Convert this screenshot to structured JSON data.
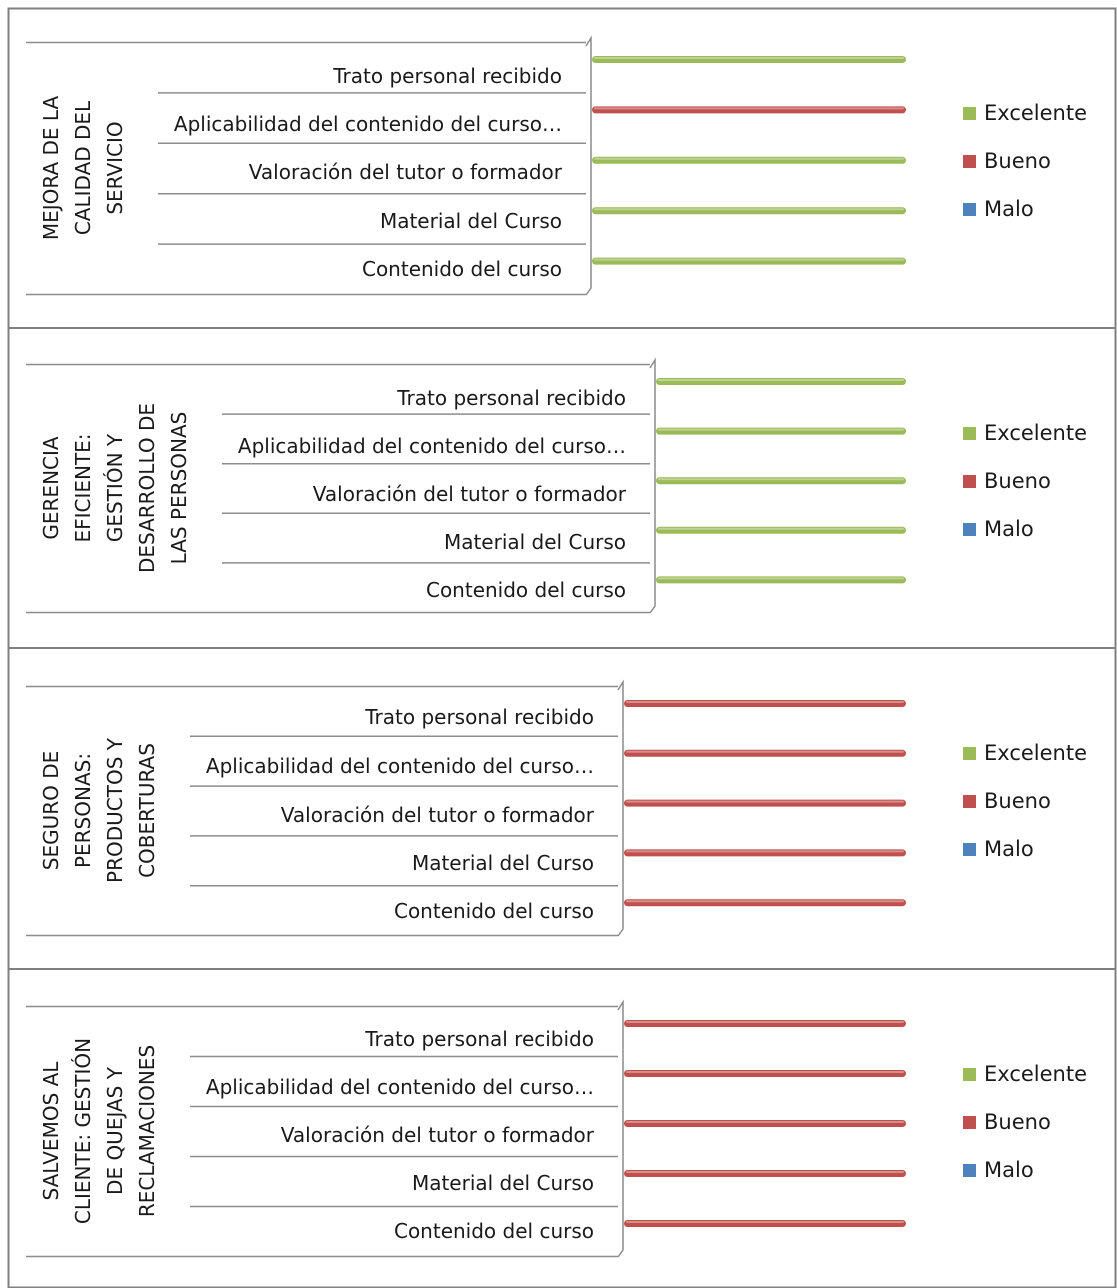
{
  "legend_labels": [
    "Excelente",
    "Bueno",
    "Malo"
  ],
  "colors": {
    "Excelente": "#9bbb59",
    "Bueno": "#c0504d",
    "Malo": "#4f81bd",
    "grid": "#8c8c8c",
    "border": "#7f7f7f"
  },
  "chart_data": [
    {
      "type": "bar",
      "orientation": "horizontal",
      "group_label": [
        "MEJORA DE LA",
        "CALIDAD DEL",
        "SERVICIO"
      ],
      "categories": [
        "Trato personal recibido",
        "Aplicabilidad del contenido del curso…",
        "Valoración del tutor o formador",
        "Material del Curso",
        "Contenido del curso"
      ],
      "series": [
        {
          "name": "Excelente",
          "values": [
            1,
            0,
            1,
            1,
            1
          ]
        },
        {
          "name": "Bueno",
          "values": [
            0,
            1,
            0,
            0,
            0
          ]
        },
        {
          "name": "Malo",
          "values": [
            0,
            0,
            0,
            0,
            0
          ]
        }
      ],
      "legend": "right",
      "grid": true
    },
    {
      "type": "bar",
      "orientation": "horizontal",
      "group_label": [
        "GERENCIA",
        "EFICIENTE:",
        "GESTIÓN Y",
        "DESARROLLO DE",
        "LAS PERSONAS"
      ],
      "categories": [
        "Trato personal recibido",
        "Aplicabilidad del contenido del curso…",
        "Valoración del tutor o formador",
        "Material del Curso",
        "Contenido del curso"
      ],
      "series": [
        {
          "name": "Excelente",
          "values": [
            1,
            1,
            1,
            1,
            1
          ]
        },
        {
          "name": "Bueno",
          "values": [
            0,
            0,
            0,
            0,
            0
          ]
        },
        {
          "name": "Malo",
          "values": [
            0,
            0,
            0,
            0,
            0
          ]
        }
      ],
      "legend": "right",
      "grid": true
    },
    {
      "type": "bar",
      "orientation": "horizontal",
      "group_label": [
        "SEGURO DE",
        "PERSONAS:",
        "PRODUCTOS Y",
        "COBERTURAS"
      ],
      "categories": [
        "Trato personal recibido",
        "Aplicabilidad del contenido del curso…",
        "Valoración del tutor o formador",
        "Material del Curso",
        "Contenido del curso"
      ],
      "series": [
        {
          "name": "Excelente",
          "values": [
            0,
            0,
            0,
            0,
            0
          ]
        },
        {
          "name": "Bueno",
          "values": [
            1,
            1,
            1,
            1,
            1
          ]
        },
        {
          "name": "Malo",
          "values": [
            0,
            0,
            0,
            0,
            0
          ]
        }
      ],
      "legend": "right",
      "grid": true
    },
    {
      "type": "bar",
      "orientation": "horizontal",
      "group_label": [
        "SALVEMOS AL",
        "CLIENTE: GESTIÓN",
        "DE QUEJAS Y",
        "RECLAMACIONES"
      ],
      "categories": [
        "Trato personal recibido",
        "Aplicabilidad del contenido del curso…",
        "Valoración del tutor o formador",
        "Material del Curso",
        "Contenido del curso"
      ],
      "series": [
        {
          "name": "Excelente",
          "values": [
            0,
            0,
            0,
            0,
            0
          ]
        },
        {
          "name": "Bueno",
          "values": [
            1,
            1,
            1,
            1,
            1
          ]
        },
        {
          "name": "Malo",
          "values": [
            0,
            0,
            0,
            0,
            0
          ]
        }
      ],
      "legend": "right",
      "grid": true
    }
  ]
}
